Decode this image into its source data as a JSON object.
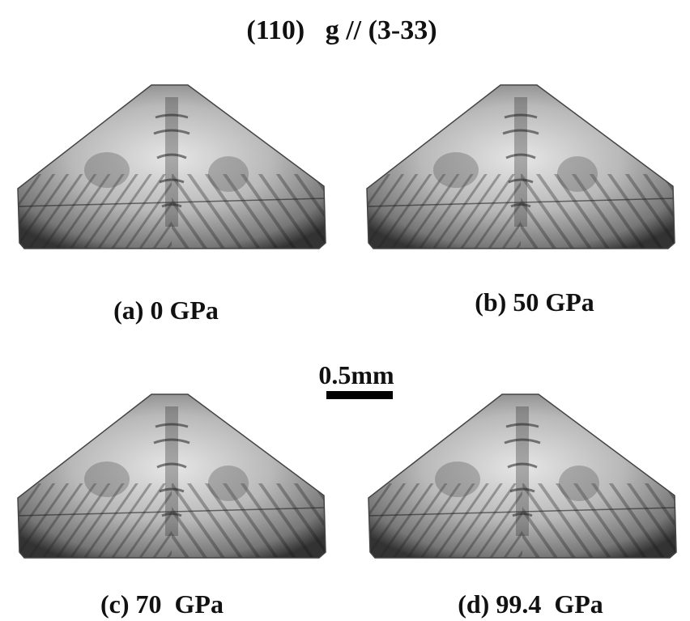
{
  "title": "(110)   g // (3-33)",
  "panels": [
    {
      "label": "(a) 0 GPa"
    },
    {
      "label": "(b) 50 GPa"
    },
    {
      "label": "(c) 70  GPa"
    },
    {
      "label": "(d) 99.4  GPa"
    }
  ],
  "scale_bar": {
    "label": "0.5mm"
  }
}
